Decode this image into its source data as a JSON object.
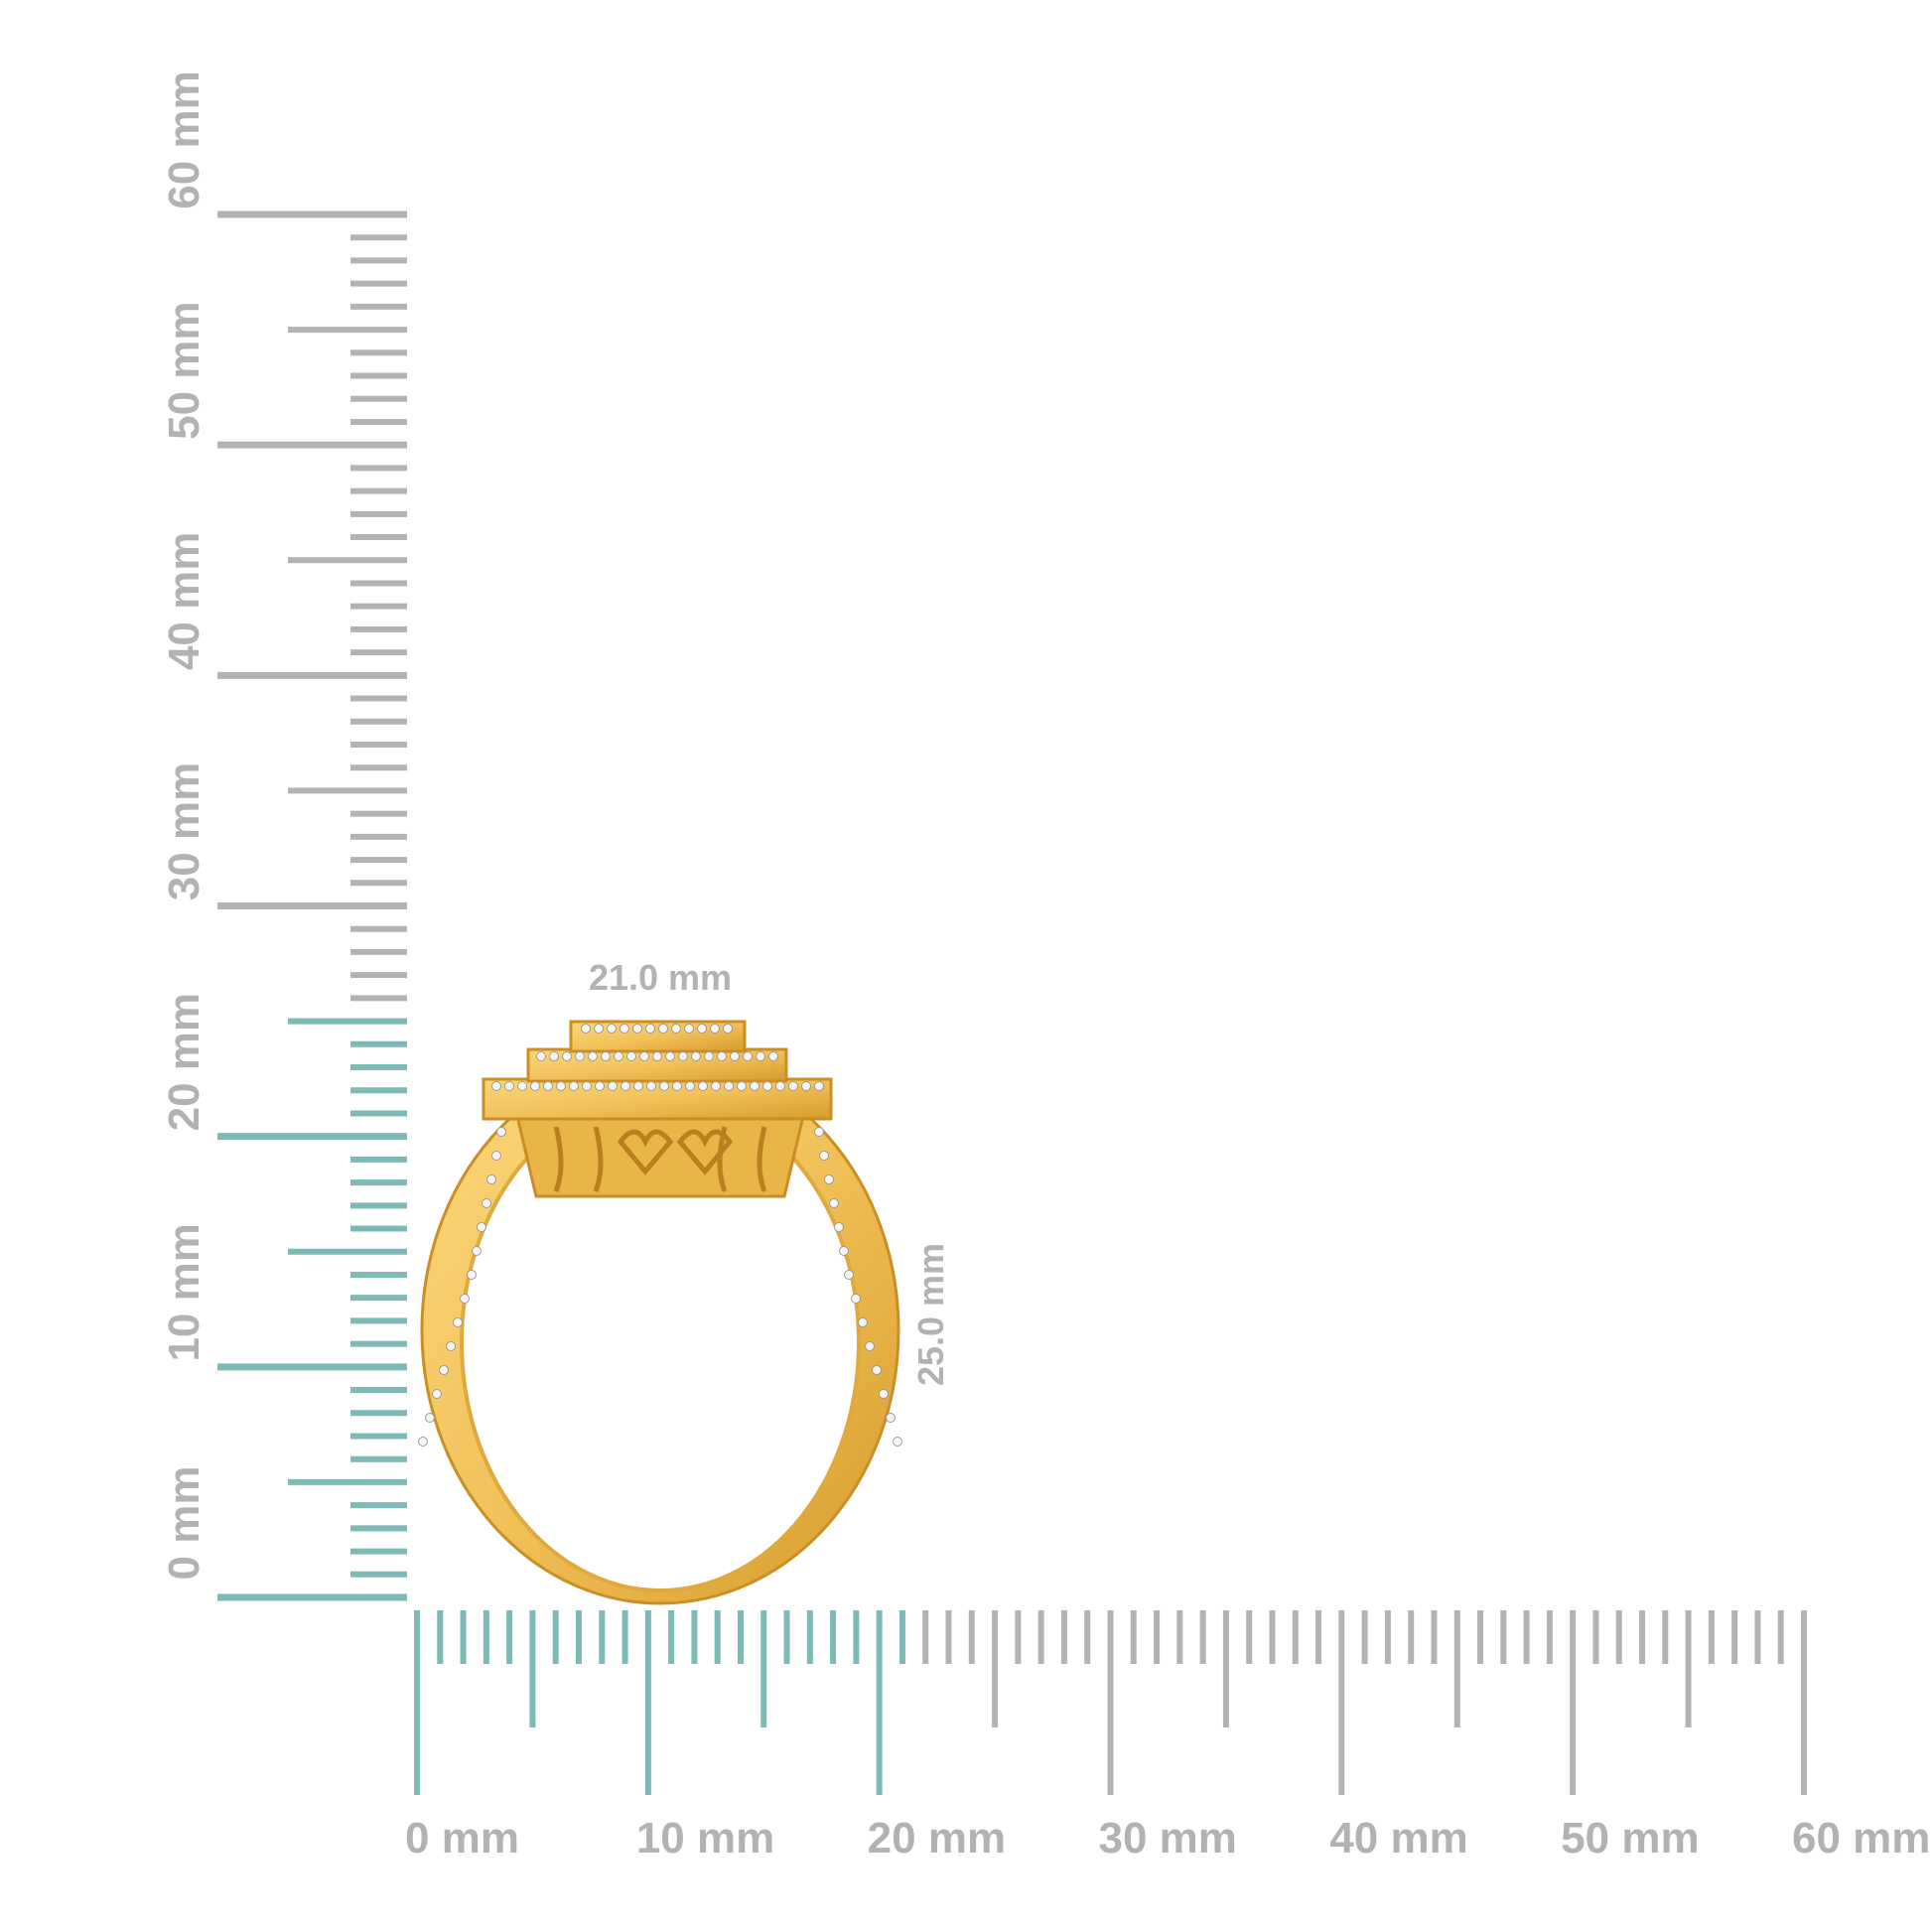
{
  "colors": {
    "highlight": "#7db9b6",
    "ruler": "#b3b3b3",
    "gold": "#f2c25a",
    "gold_dark": "#d79b2c",
    "label": "#b2b2b2",
    "dimension_label": "#c4c4c4"
  },
  "vertical_ruler": {
    "unit": "mm",
    "range": [
      0,
      60
    ],
    "highlight_to": 25,
    "labels": [
      "0 mm",
      "10 mm",
      "20 mm",
      "30 mm",
      "40 mm",
      "50 mm",
      "60 mm"
    ]
  },
  "horizontal_ruler": {
    "unit": "mm",
    "range": [
      0,
      60
    ],
    "highlight_to": 21,
    "labels": [
      "0 mm",
      "10 mm",
      "20 mm",
      "30 mm",
      "40 mm",
      "50 mm",
      "60 mm"
    ]
  },
  "product": {
    "width_label": "21.0 mm",
    "height_label": "25.0 mm"
  }
}
